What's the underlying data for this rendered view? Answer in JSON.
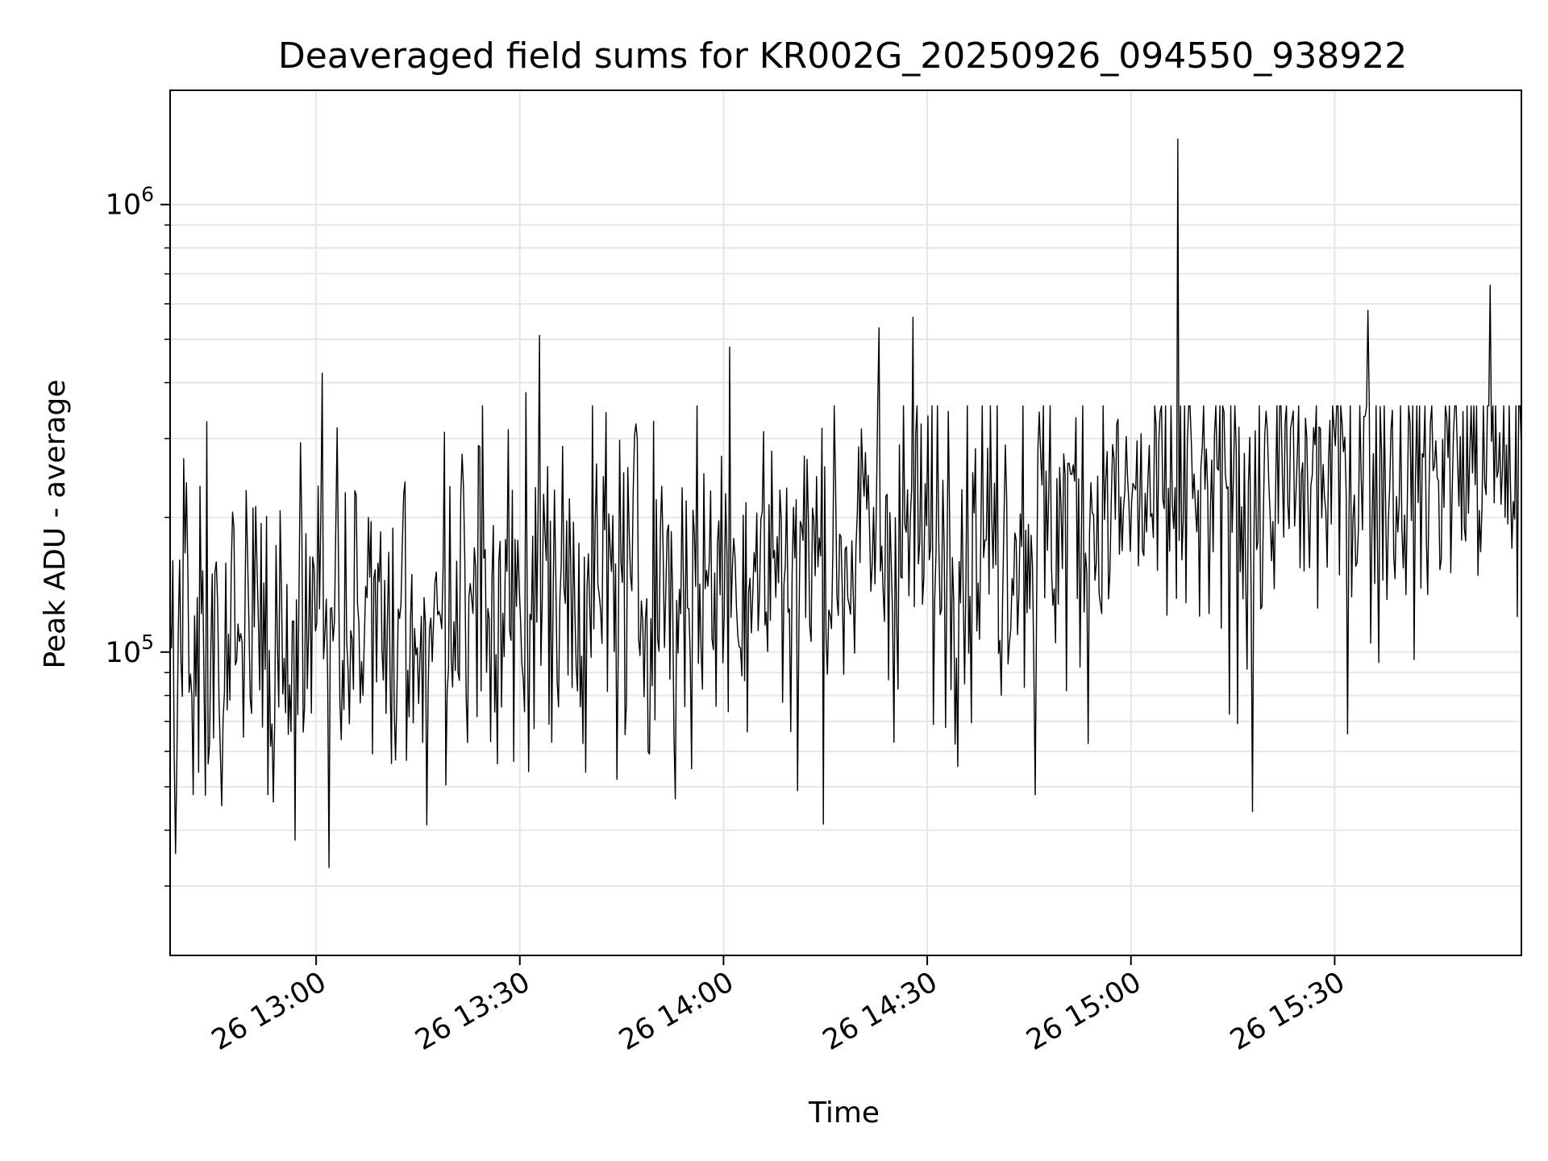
{
  "chart_data": {
    "type": "line",
    "title": "Deaveraged field sums for KR002G_20250926_094550_938922",
    "xlabel": "Time",
    "ylabel": "Peak ADU - average",
    "yscale": "log",
    "ylim": [
      21000,
      1800000
    ],
    "xlim_minutes": [
      758.5,
      957.5
    ],
    "grid": true,
    "line_color": "#000000",
    "x_ticks": [
      {
        "minutes": 780,
        "label": "26 13:00"
      },
      {
        "minutes": 810,
        "label": "26 13:30"
      },
      {
        "minutes": 840,
        "label": "26 14:00"
      },
      {
        "minutes": 870,
        "label": "26 14:30"
      },
      {
        "minutes": 900,
        "label": "26 15:00"
      },
      {
        "minutes": 930,
        "label": "26 15:30"
      }
    ],
    "y_ticks": [
      {
        "value": 100000,
        "base": "10",
        "exponent": "5"
      },
      {
        "value": 1000000,
        "base": "10",
        "exponent": "6"
      }
    ],
    "series": [
      {
        "name": "Peak ADU - average",
        "x_start_minutes": 758.5,
        "x_step_minutes": 0.2,
        "key_points": [
          {
            "minutes": 759,
            "value": 160000
          },
          {
            "minutes": 762,
            "value": 48000
          },
          {
            "minutes": 773,
            "value": 48000
          },
          {
            "minutes": 777,
            "value": 38000
          },
          {
            "minutes": 781,
            "value": 420000
          },
          {
            "minutes": 782,
            "value": 33000
          },
          {
            "minutes": 799,
            "value": 310000
          },
          {
            "minutes": 811,
            "value": 380000
          },
          {
            "minutes": 813,
            "value": 510000
          },
          {
            "minutes": 833,
            "value": 47000
          },
          {
            "minutes": 841,
            "value": 480000
          },
          {
            "minutes": 851,
            "value": 49000
          },
          {
            "minutes": 863,
            "value": 530000
          },
          {
            "minutes": 868,
            "value": 560000
          },
          {
            "minutes": 886,
            "value": 48000
          },
          {
            "minutes": 907,
            "value": 1400000
          },
          {
            "minutes": 918,
            "value": 44000
          },
          {
            "minutes": 935,
            "value": 580000
          },
          {
            "minutes": 953,
            "value": 660000
          },
          {
            "minutes": 957,
            "value": 120000
          }
        ]
      }
    ]
  }
}
